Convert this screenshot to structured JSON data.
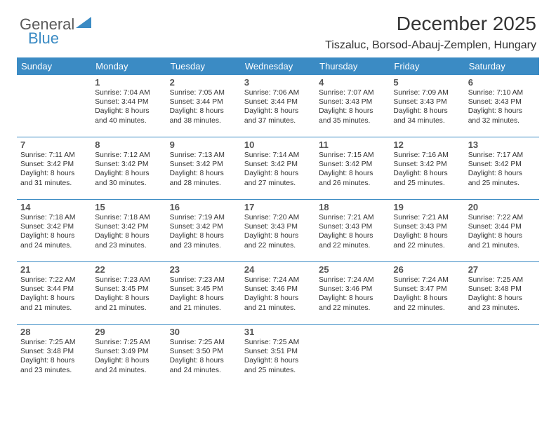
{
  "brand": {
    "part1": "General",
    "part2": "Blue"
  },
  "title": "December 2025",
  "location": "Tiszaluc, Borsod-Abauj-Zemplen, Hungary",
  "colors": {
    "accent": "#3b8bc4",
    "text": "#333333",
    "bg": "#ffffff",
    "daynum": "#555555"
  },
  "headers": [
    "Sunday",
    "Monday",
    "Tuesday",
    "Wednesday",
    "Thursday",
    "Friday",
    "Saturday"
  ],
  "weeks": [
    [
      {
        "num": "",
        "sunrise": "",
        "sunset": "",
        "daylight": ""
      },
      {
        "num": "1",
        "sunrise": "Sunrise: 7:04 AM",
        "sunset": "Sunset: 3:44 PM",
        "daylight": "Daylight: 8 hours and 40 minutes."
      },
      {
        "num": "2",
        "sunrise": "Sunrise: 7:05 AM",
        "sunset": "Sunset: 3:44 PM",
        "daylight": "Daylight: 8 hours and 38 minutes."
      },
      {
        "num": "3",
        "sunrise": "Sunrise: 7:06 AM",
        "sunset": "Sunset: 3:44 PM",
        "daylight": "Daylight: 8 hours and 37 minutes."
      },
      {
        "num": "4",
        "sunrise": "Sunrise: 7:07 AM",
        "sunset": "Sunset: 3:43 PM",
        "daylight": "Daylight: 8 hours and 35 minutes."
      },
      {
        "num": "5",
        "sunrise": "Sunrise: 7:09 AM",
        "sunset": "Sunset: 3:43 PM",
        "daylight": "Daylight: 8 hours and 34 minutes."
      },
      {
        "num": "6",
        "sunrise": "Sunrise: 7:10 AM",
        "sunset": "Sunset: 3:43 PM",
        "daylight": "Daylight: 8 hours and 32 minutes."
      }
    ],
    [
      {
        "num": "7",
        "sunrise": "Sunrise: 7:11 AM",
        "sunset": "Sunset: 3:42 PM",
        "daylight": "Daylight: 8 hours and 31 minutes."
      },
      {
        "num": "8",
        "sunrise": "Sunrise: 7:12 AM",
        "sunset": "Sunset: 3:42 PM",
        "daylight": "Daylight: 8 hours and 30 minutes."
      },
      {
        "num": "9",
        "sunrise": "Sunrise: 7:13 AM",
        "sunset": "Sunset: 3:42 PM",
        "daylight": "Daylight: 8 hours and 28 minutes."
      },
      {
        "num": "10",
        "sunrise": "Sunrise: 7:14 AM",
        "sunset": "Sunset: 3:42 PM",
        "daylight": "Daylight: 8 hours and 27 minutes."
      },
      {
        "num": "11",
        "sunrise": "Sunrise: 7:15 AM",
        "sunset": "Sunset: 3:42 PM",
        "daylight": "Daylight: 8 hours and 26 minutes."
      },
      {
        "num": "12",
        "sunrise": "Sunrise: 7:16 AM",
        "sunset": "Sunset: 3:42 PM",
        "daylight": "Daylight: 8 hours and 25 minutes."
      },
      {
        "num": "13",
        "sunrise": "Sunrise: 7:17 AM",
        "sunset": "Sunset: 3:42 PM",
        "daylight": "Daylight: 8 hours and 25 minutes."
      }
    ],
    [
      {
        "num": "14",
        "sunrise": "Sunrise: 7:18 AM",
        "sunset": "Sunset: 3:42 PM",
        "daylight": "Daylight: 8 hours and 24 minutes."
      },
      {
        "num": "15",
        "sunrise": "Sunrise: 7:18 AM",
        "sunset": "Sunset: 3:42 PM",
        "daylight": "Daylight: 8 hours and 23 minutes."
      },
      {
        "num": "16",
        "sunrise": "Sunrise: 7:19 AM",
        "sunset": "Sunset: 3:42 PM",
        "daylight": "Daylight: 8 hours and 23 minutes."
      },
      {
        "num": "17",
        "sunrise": "Sunrise: 7:20 AM",
        "sunset": "Sunset: 3:43 PM",
        "daylight": "Daylight: 8 hours and 22 minutes."
      },
      {
        "num": "18",
        "sunrise": "Sunrise: 7:21 AM",
        "sunset": "Sunset: 3:43 PM",
        "daylight": "Daylight: 8 hours and 22 minutes."
      },
      {
        "num": "19",
        "sunrise": "Sunrise: 7:21 AM",
        "sunset": "Sunset: 3:43 PM",
        "daylight": "Daylight: 8 hours and 22 minutes."
      },
      {
        "num": "20",
        "sunrise": "Sunrise: 7:22 AM",
        "sunset": "Sunset: 3:44 PM",
        "daylight": "Daylight: 8 hours and 21 minutes."
      }
    ],
    [
      {
        "num": "21",
        "sunrise": "Sunrise: 7:22 AM",
        "sunset": "Sunset: 3:44 PM",
        "daylight": "Daylight: 8 hours and 21 minutes."
      },
      {
        "num": "22",
        "sunrise": "Sunrise: 7:23 AM",
        "sunset": "Sunset: 3:45 PM",
        "daylight": "Daylight: 8 hours and 21 minutes."
      },
      {
        "num": "23",
        "sunrise": "Sunrise: 7:23 AM",
        "sunset": "Sunset: 3:45 PM",
        "daylight": "Daylight: 8 hours and 21 minutes."
      },
      {
        "num": "24",
        "sunrise": "Sunrise: 7:24 AM",
        "sunset": "Sunset: 3:46 PM",
        "daylight": "Daylight: 8 hours and 21 minutes."
      },
      {
        "num": "25",
        "sunrise": "Sunrise: 7:24 AM",
        "sunset": "Sunset: 3:46 PM",
        "daylight": "Daylight: 8 hours and 22 minutes."
      },
      {
        "num": "26",
        "sunrise": "Sunrise: 7:24 AM",
        "sunset": "Sunset: 3:47 PM",
        "daylight": "Daylight: 8 hours and 22 minutes."
      },
      {
        "num": "27",
        "sunrise": "Sunrise: 7:25 AM",
        "sunset": "Sunset: 3:48 PM",
        "daylight": "Daylight: 8 hours and 23 minutes."
      }
    ],
    [
      {
        "num": "28",
        "sunrise": "Sunrise: 7:25 AM",
        "sunset": "Sunset: 3:48 PM",
        "daylight": "Daylight: 8 hours and 23 minutes."
      },
      {
        "num": "29",
        "sunrise": "Sunrise: 7:25 AM",
        "sunset": "Sunset: 3:49 PM",
        "daylight": "Daylight: 8 hours and 24 minutes."
      },
      {
        "num": "30",
        "sunrise": "Sunrise: 7:25 AM",
        "sunset": "Sunset: 3:50 PM",
        "daylight": "Daylight: 8 hours and 24 minutes."
      },
      {
        "num": "31",
        "sunrise": "Sunrise: 7:25 AM",
        "sunset": "Sunset: 3:51 PM",
        "daylight": "Daylight: 8 hours and 25 minutes."
      },
      {
        "num": "",
        "sunrise": "",
        "sunset": "",
        "daylight": ""
      },
      {
        "num": "",
        "sunrise": "",
        "sunset": "",
        "daylight": ""
      },
      {
        "num": "",
        "sunrise": "",
        "sunset": "",
        "daylight": ""
      }
    ]
  ]
}
